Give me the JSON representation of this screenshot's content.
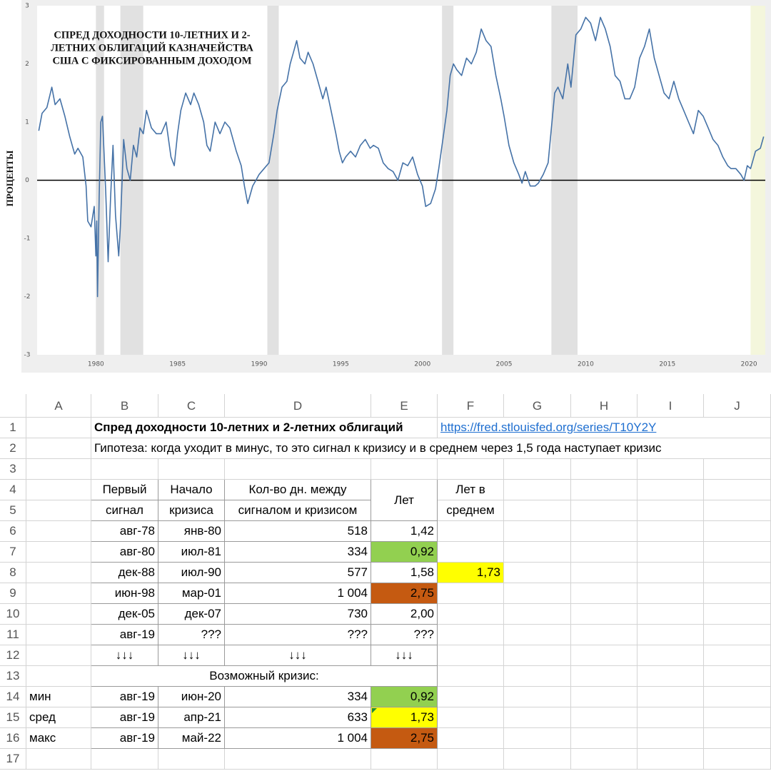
{
  "chart_data": {
    "type": "line",
    "title": [
      "СПРЕД ДОХОДНОСТИ 10-ЛЕТНИХ И 2-",
      "ЛЕТНИХ ОБЛИГАЦИЙ КАЗНАЧЕЙСТВА",
      "США С ФИКСИРОВАННЫМ ДОХОДОМ"
    ],
    "y_label": "ПРОЦЕНТЫ",
    "color": "#4572a7",
    "x": [
      1976.5,
      1976.7,
      1977.0,
      1977.3,
      1977.5,
      1977.8,
      1978.1,
      1978.4,
      1978.7,
      1978.9,
      1979.2,
      1979.4,
      1979.5,
      1979.7,
      1979.9,
      1980.0,
      1980.05,
      1980.1,
      1980.2,
      1980.3,
      1980.4,
      1980.6,
      1980.75,
      1980.9,
      1981.05,
      1981.2,
      1981.4,
      1981.5,
      1981.7,
      1981.9,
      1982.1,
      1982.3,
      1982.5,
      1982.7,
      1982.9,
      1983.1,
      1983.4,
      1983.7,
      1984.0,
      1984.3,
      1984.6,
      1984.8,
      1985.0,
      1985.2,
      1985.5,
      1985.8,
      1986.0,
      1986.3,
      1986.6,
      1986.8,
      1987.0,
      1987.3,
      1987.6,
      1987.9,
      1988.2,
      1988.6,
      1988.9,
      1989.1,
      1989.3,
      1989.6,
      1989.8,
      1990.0,
      1990.3,
      1990.6,
      1990.9,
      1991.1,
      1991.4,
      1991.7,
      1991.9,
      1992.1,
      1992.3,
      1992.5,
      1992.8,
      1993.0,
      1993.3,
      1993.6,
      1993.9,
      1994.1,
      1994.4,
      1994.7,
      1994.9,
      1995.1,
      1995.3,
      1995.6,
      1995.9,
      1996.2,
      1996.5,
      1996.8,
      1997.0,
      1997.3,
      1997.6,
      1997.9,
      1998.2,
      1998.5,
      1998.8,
      1999.1,
      1999.4,
      1999.7,
      2000.0,
      2000.2,
      2000.5,
      2000.8,
      2001.0,
      2001.3,
      2001.5,
      2001.7,
      2001.9,
      2002.1,
      2002.4,
      2002.7,
      2003.0,
      2003.3,
      2003.6,
      2003.9,
      2004.2,
      2004.5,
      2004.8,
      2005.0,
      2005.3,
      2005.6,
      2005.9,
      2006.1,
      2006.3,
      2006.6,
      2006.9,
      2007.1,
      2007.4,
      2007.7,
      2007.9,
      2008.1,
      2008.3,
      2008.6,
      2008.9,
      2009.1,
      2009.4,
      2009.7,
      2010.0,
      2010.3,
      2010.6,
      2010.9,
      2011.2,
      2011.5,
      2011.8,
      2012.1,
      2012.4,
      2012.7,
      2013.0,
      2013.3,
      2013.6,
      2013.9,
      2014.2,
      2014.5,
      2014.8,
      2015.1,
      2015.4,
      2015.7,
      2016.0,
      2016.3,
      2016.6,
      2016.9,
      2017.2,
      2017.5,
      2017.8,
      2018.1,
      2018.4,
      2018.7,
      2018.9,
      2019.2,
      2019.5,
      2019.7,
      2019.9,
      2020.1,
      2020.4,
      2020.7,
      2020.9
    ],
    "values": [
      0.85,
      1.15,
      1.25,
      1.6,
      1.3,
      1.4,
      1.1,
      0.75,
      0.45,
      0.55,
      0.4,
      -0.1,
      -0.7,
      -0.8,
      -0.45,
      -1.3,
      -0.7,
      -2.0,
      -0.3,
      1.0,
      1.1,
      -0.2,
      -1.4,
      -0.3,
      0.6,
      -0.6,
      -1.3,
      -0.8,
      0.7,
      0.2,
      0.0,
      0.6,
      0.4,
      0.9,
      0.8,
      1.2,
      0.9,
      0.8,
      0.8,
      1.0,
      0.4,
      0.25,
      0.8,
      1.2,
      1.5,
      1.3,
      1.5,
      1.3,
      1.0,
      0.6,
      0.5,
      1.0,
      0.8,
      1.0,
      0.9,
      0.5,
      0.25,
      -0.1,
      -0.4,
      -0.1,
      0.0,
      0.1,
      0.2,
      0.3,
      0.8,
      1.2,
      1.6,
      1.7,
      2.0,
      2.2,
      2.4,
      2.1,
      2.0,
      2.2,
      2.0,
      1.7,
      1.4,
      1.6,
      1.2,
      0.8,
      0.5,
      0.3,
      0.4,
      0.5,
      0.4,
      0.6,
      0.7,
      0.55,
      0.6,
      0.55,
      0.3,
      0.2,
      0.15,
      0.0,
      0.3,
      0.25,
      0.4,
      0.1,
      -0.1,
      -0.45,
      -0.4,
      -0.15,
      0.2,
      0.8,
      1.2,
      1.8,
      2.0,
      1.9,
      1.8,
      2.1,
      2.0,
      2.2,
      2.6,
      2.4,
      2.3,
      1.8,
      1.4,
      1.1,
      0.6,
      0.3,
      0.1,
      -0.05,
      0.15,
      -0.1,
      -0.1,
      -0.05,
      0.1,
      0.3,
      0.9,
      1.5,
      1.6,
      1.4,
      2.0,
      1.6,
      2.5,
      2.6,
      2.8,
      2.7,
      2.4,
      2.8,
      2.6,
      2.3,
      1.8,
      1.7,
      1.4,
      1.4,
      1.6,
      2.1,
      2.3,
      2.6,
      2.1,
      1.8,
      1.5,
      1.4,
      1.7,
      1.4,
      1.2,
      1.0,
      0.8,
      1.2,
      1.1,
      0.9,
      0.7,
      0.6,
      0.4,
      0.25,
      0.2,
      0.2,
      0.1,
      0.0,
      0.25,
      0.2,
      0.5,
      0.55,
      0.75
    ],
    "shaded_periods": [
      [
        1980.0,
        1980.5
      ],
      [
        1981.5,
        1982.9
      ],
      [
        1990.5,
        1991.2
      ],
      [
        2001.2,
        2001.9
      ],
      [
        2007.9,
        2009.5
      ]
    ],
    "shade_color": "#e1e1e1",
    "highlight_period": [
      2020.1,
      2021.0
    ],
    "highlight_color": "#f4f6dc",
    "zero_line_color": "#000000",
    "xlim": [
      1976.4,
      2021.0
    ],
    "ylim": [
      -3,
      3
    ],
    "xticks": [
      1980,
      1985,
      1990,
      1995,
      2000,
      2005,
      2010,
      2015,
      2020
    ],
    "yticks": [
      -3,
      -2,
      -1,
      0,
      1,
      2,
      3
    ]
  },
  "sheet": {
    "columns": [
      "A",
      "B",
      "C",
      "D",
      "E",
      "F",
      "G",
      "H",
      "I",
      "J"
    ],
    "row_numbers": [
      1,
      2,
      3,
      4,
      5,
      6,
      7,
      8,
      9,
      10,
      11,
      12,
      13,
      14,
      15,
      16,
      17
    ],
    "rows": [
      [
        null,
        {
          "text": "Спред доходности 10-летних и 2-летних облигаций",
          "bold": true
        },
        null,
        null,
        null,
        {
          "text": "https://fred.stlouisfed.org/series/T10Y2Y",
          "link": true
        },
        null,
        null,
        null,
        null
      ],
      [
        null,
        "Гипотеза: когда уходит в минус, то это сигнал к кризису и в среднем через 1,5 года наступает кризис",
        null,
        null,
        null,
        null,
        null,
        null,
        null,
        null
      ],
      [
        null,
        null,
        null,
        null,
        null,
        null,
        null,
        null,
        null,
        null
      ],
      [
        null,
        "Первый",
        "Начало",
        "Кол-во дн. между",
        "Лет",
        "Лет в",
        null,
        null,
        null,
        null
      ],
      [
        null,
        "сигнал",
        "кризиса",
        "сигналом и кризисом",
        null,
        "среднем",
        null,
        null,
        null,
        null
      ],
      [
        null,
        "авг-78",
        "янв-80",
        "518",
        "1,42",
        null,
        null,
        null,
        null,
        null
      ],
      [
        null,
        "авг-80",
        "июл-81",
        "334",
        {
          "text": "0,92",
          "fill": "#92d050"
        },
        null,
        null,
        null,
        null,
        null
      ],
      [
        null,
        "дек-88",
        "июл-90",
        "577",
        "1,58",
        {
          "text": "1,73",
          "fill": "#ffff00"
        },
        null,
        null,
        null,
        null
      ],
      [
        null,
        "июн-98",
        "мар-01",
        "1 004",
        {
          "text": "2,75",
          "fill": "#c55a11"
        },
        null,
        null,
        null,
        null,
        null
      ],
      [
        null,
        "дек-05",
        "дек-07",
        "730",
        "2,00",
        null,
        null,
        null,
        null,
        null
      ],
      [
        null,
        "авг-19",
        "???",
        "???",
        "???",
        null,
        null,
        null,
        null,
        null
      ],
      [
        null,
        "↓↓↓",
        "↓↓↓",
        "↓↓↓",
        "↓↓↓",
        null,
        null,
        null,
        null,
        null
      ],
      [
        null,
        "Возможный кризис:",
        null,
        null,
        null,
        null,
        null,
        null,
        null,
        null
      ],
      [
        "мин",
        "авг-19",
        "июн-20",
        "334",
        {
          "text": "0,92",
          "fill": "#92d050"
        },
        null,
        null,
        null,
        null,
        null
      ],
      [
        "сред",
        "авг-19",
        "апр-21",
        "633",
        {
          "text": "1,73",
          "fill": "#ffff00"
        },
        null,
        null,
        null,
        null,
        null
      ],
      [
        "макс",
        "авг-19",
        "май-22",
        "1 004",
        {
          "text": "2,75",
          "fill": "#c55a11"
        },
        null,
        null,
        null,
        null,
        null
      ],
      [
        null,
        null,
        null,
        null,
        null,
        null,
        null,
        null,
        null,
        null
      ]
    ]
  }
}
